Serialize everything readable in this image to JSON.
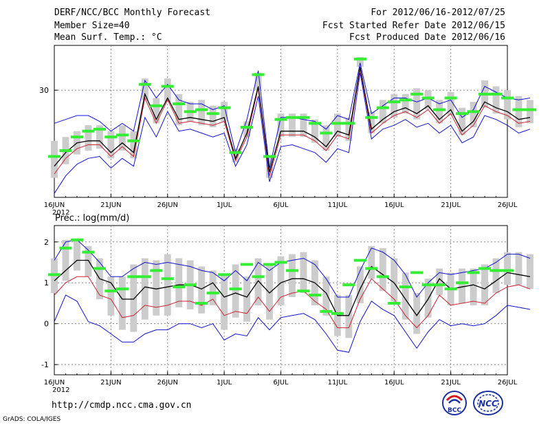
{
  "header": {
    "title": "DERF/NCC/BCC Monthly Forecast",
    "member_size": "Member Size=40",
    "variable_top": "Mean Surf. Temp.: °C",
    "period": "For 2012/06/16-2012/07/25",
    "fcst_started": "Fcst Started Refer Date 2012/06/15",
    "fcst_produced": "Fcst Produced Date 2012/06/16"
  },
  "footer": {
    "url": "http://cmdp.ncc.cma.gov.cn",
    "credit": "GrADS: COLA/IGES",
    "logo1_text": "BCC",
    "logo2_text": "NCC"
  },
  "colors": {
    "upper_line": "#1010d0",
    "lower_line": "#1010d0",
    "mean_line": "#000000",
    "median_line": "#cc2233",
    "observed": "#33ee33",
    "spread_bar": "#cccccc",
    "grid": "#888888"
  },
  "chart_data": [
    {
      "type": "line",
      "title": "Mean Surf. Temp.: °C",
      "xlabel": "",
      "ylabel": "",
      "x_days": 40,
      "x_ticks": [
        {
          "day": 0,
          "label": "16JUN"
        },
        {
          "day": 5,
          "label": "21JUN"
        },
        {
          "day": 10,
          "label": "26JUN"
        },
        {
          "day": 15,
          "label": "1JUL"
        },
        {
          "day": 20,
          "label": "6JUL"
        },
        {
          "day": 25,
          "label": "11JUL"
        },
        {
          "day": 30,
          "label": "16JUL"
        },
        {
          "day": 35,
          "label": "21JUL"
        },
        {
          "day": 40,
          "label": "26JUL"
        }
      ],
      "year_label": "2012",
      "y_ticks": [
        30
      ],
      "ylim": [
        24.5,
        32.3
      ],
      "series": [
        {
          "name": "upper",
          "values": [
            28.3,
            28.5,
            28.7,
            28.7,
            28.4,
            27.9,
            28.3,
            27.9,
            30.5,
            29.6,
            30.3,
            29.5,
            29.3,
            29.3,
            29.0,
            29.2,
            26.8,
            28.5,
            31.0,
            26.0,
            28.6,
            28.6,
            28.5,
            28.4,
            28.0,
            28.7,
            28.5,
            31.4,
            28.8,
            29.2,
            29.6,
            29.6,
            29.4,
            29.6,
            29.3,
            29.5,
            28.6,
            29.0,
            30.2,
            29.9,
            29.6,
            29.5,
            29.6
          ]
        },
        {
          "name": "mean",
          "values": [
            26.1,
            26.8,
            27.3,
            27.4,
            27.4,
            26.8,
            27.3,
            26.8,
            29.8,
            28.5,
            29.6,
            28.5,
            28.6,
            28.5,
            28.4,
            28.6,
            26.5,
            27.8,
            30.2,
            25.8,
            27.9,
            27.9,
            27.9,
            27.6,
            27.1,
            27.9,
            27.7,
            31.2,
            28.0,
            28.5,
            28.9,
            29.1,
            28.8,
            29.2,
            28.5,
            29.0,
            27.9,
            28.4,
            29.4,
            29.1,
            28.9,
            28.5,
            28.6
          ]
        },
        {
          "name": "median",
          "values": [
            25.7,
            26.5,
            27.0,
            27.2,
            27.2,
            26.6,
            27.1,
            26.6,
            29.6,
            28.3,
            29.5,
            28.3,
            28.4,
            28.3,
            28.2,
            28.4,
            26.4,
            27.6,
            30.1,
            25.6,
            27.7,
            27.7,
            27.7,
            27.4,
            26.9,
            27.7,
            27.5,
            31.1,
            27.8,
            28.3,
            28.7,
            28.9,
            28.6,
            29.0,
            28.3,
            28.8,
            27.7,
            28.2,
            29.2,
            28.9,
            28.7,
            28.3,
            28.4
          ]
        },
        {
          "name": "lower",
          "values": [
            24.7,
            25.6,
            26.2,
            26.5,
            26.6,
            26.0,
            26.5,
            26.1,
            28.6,
            27.6,
            28.9,
            27.9,
            28.0,
            27.8,
            27.6,
            27.8,
            26.1,
            27.2,
            29.7,
            25.3,
            27.1,
            27.2,
            27.0,
            26.8,
            26.3,
            27.0,
            26.8,
            30.9,
            27.5,
            28.0,
            28.2,
            28.5,
            28.1,
            28.3,
            27.8,
            28.2,
            27.3,
            27.6,
            28.7,
            28.5,
            28.2,
            27.8,
            28.0
          ]
        },
        {
          "name": "observed",
          "values": [
            26.6,
            26.9,
            27.6,
            27.9,
            28.0,
            27.6,
            27.7,
            27.4,
            30.3,
            29.2,
            30.2,
            29.3,
            28.9,
            29.0,
            28.8,
            29.1,
            26.8,
            28.1,
            30.8,
            26.6,
            28.5,
            28.6,
            28.6,
            28.3,
            27.8,
            28.3,
            28.3,
            31.6,
            28.6,
            29.1,
            29.4,
            29.5,
            29.8,
            29.6,
            29.0,
            29.6,
            28.8,
            28.9,
            29.8,
            29.8,
            29.6,
            29.0,
            29.0
          ]
        },
        {
          "name": "spread_high",
          "values": [
            27.4,
            27.6,
            27.9,
            28.2,
            28.2,
            27.9,
            28.2,
            27.9,
            30.6,
            29.6,
            30.6,
            29.8,
            29.4,
            29.5,
            29.2,
            29.4,
            27.0,
            28.4,
            30.9,
            26.6,
            28.8,
            28.8,
            28.8,
            28.5,
            28.2,
            28.8,
            28.6,
            31.7,
            28.9,
            29.5,
            29.8,
            29.8,
            30.1,
            30.0,
            29.5,
            29.9,
            29.1,
            29.4,
            30.5,
            30.2,
            30.0,
            29.7,
            29.5
          ]
        },
        {
          "name": "spread_low",
          "values": [
            25.5,
            26.2,
            26.7,
            26.9,
            27.0,
            26.5,
            26.9,
            26.5,
            29.5,
            28.3,
            29.4,
            28.2,
            28.4,
            28.2,
            28.1,
            28.4,
            26.3,
            27.6,
            30.0,
            25.5,
            27.6,
            27.6,
            27.6,
            27.3,
            26.9,
            27.6,
            27.4,
            31.2,
            27.8,
            28.3,
            28.6,
            28.8,
            28.5,
            29.0,
            28.3,
            28.7,
            27.7,
            28.1,
            29.1,
            28.8,
            28.5,
            28.1,
            28.3
          ]
        }
      ]
    },
    {
      "type": "line",
      "title": "Prec.: log(mm/d)",
      "xlabel": "",
      "ylabel": "",
      "x_days": 40,
      "x_ticks": [
        {
          "day": 0,
          "label": "16JUN"
        },
        {
          "day": 5,
          "label": "21JUN"
        },
        {
          "day": 10,
          "label": "26JUN"
        },
        {
          "day": 15,
          "label": "1JUL"
        },
        {
          "day": 20,
          "label": "6JUL"
        },
        {
          "day": 25,
          "label": "11JUL"
        },
        {
          "day": 30,
          "label": "16JUL"
        },
        {
          "day": 35,
          "label": "21JUL"
        },
        {
          "day": 40,
          "label": "26JUL"
        }
      ],
      "year_label": "2012",
      "y_ticks": [
        -1,
        0,
        1,
        2
      ],
      "ylim": [
        -1.25,
        2.4
      ],
      "series": [
        {
          "name": "upper",
          "values": [
            1.55,
            2.0,
            2.05,
            1.8,
            1.5,
            1.15,
            1.15,
            1.35,
            1.5,
            1.45,
            1.5,
            1.45,
            1.4,
            1.3,
            1.25,
            1.05,
            1.3,
            1.05,
            1.5,
            1.3,
            1.5,
            1.55,
            1.6,
            1.45,
            1.1,
            0.65,
            0.65,
            1.3,
            1.85,
            1.75,
            1.55,
            1.2,
            0.65,
            1.0,
            1.25,
            1.2,
            1.25,
            1.3,
            1.35,
            1.5,
            1.7,
            1.7,
            1.6
          ]
        },
        {
          "name": "mean",
          "values": [
            1.05,
            1.3,
            1.55,
            1.55,
            1.1,
            1.0,
            0.6,
            0.6,
            0.9,
            0.85,
            0.9,
            0.95,
            0.95,
            0.85,
            1.0,
            0.65,
            0.75,
            0.65,
            1.05,
            0.75,
            1.0,
            1.1,
            1.1,
            1.0,
            0.75,
            0.2,
            0.2,
            0.85,
            1.4,
            1.2,
            1.0,
            0.6,
            0.2,
            0.6,
            1.1,
            0.85,
            0.9,
            0.95,
            0.85,
            1.05,
            1.25,
            1.2,
            1.15
          ]
        },
        {
          "name": "median",
          "values": [
            0.7,
            1.0,
            1.15,
            1.15,
            0.7,
            0.6,
            0.15,
            0.2,
            0.45,
            0.4,
            0.45,
            0.55,
            0.55,
            0.45,
            0.6,
            0.2,
            0.3,
            0.25,
            0.65,
            0.3,
            0.65,
            0.75,
            0.8,
            0.55,
            0.35,
            -0.1,
            -0.1,
            0.6,
            1.1,
            0.85,
            0.6,
            0.2,
            -0.1,
            0.2,
            0.7,
            0.45,
            0.5,
            0.55,
            0.5,
            0.75,
            0.9,
            0.95,
            0.85
          ]
        },
        {
          "name": "lower",
          "values": [
            0.05,
            0.7,
            0.55,
            0.05,
            -0.05,
            -0.25,
            -0.45,
            -0.45,
            -0.25,
            -0.15,
            -0.15,
            0.0,
            0.0,
            -0.1,
            0.0,
            -0.4,
            -0.25,
            -0.3,
            0.15,
            -0.15,
            0.15,
            0.2,
            0.25,
            0.1,
            -0.25,
            -0.65,
            -0.7,
            0.05,
            0.55,
            0.35,
            0.2,
            -0.2,
            -0.6,
            -0.2,
            0.1,
            -0.05,
            0.0,
            -0.05,
            0.0,
            0.2,
            0.45,
            0.4,
            0.35
          ]
        },
        {
          "name": "observed",
          "values": [
            1.2,
            1.85,
            2.05,
            1.75,
            1.35,
            0.8,
            0.85,
            1.15,
            1.15,
            1.3,
            1.1,
            0.9,
            0.95,
            0.5,
            0.75,
            1.2,
            0.85,
            1.45,
            1.15,
            1.45,
            1.5,
            1.3,
            0.8,
            0.7,
            0.3,
            0.25,
            0.95,
            1.55,
            1.35,
            1.15,
            0.5,
            0.9,
            1.25,
            0.95,
            0.95,
            0.85,
            1.0,
            1.25,
            1.35,
            1.3,
            1.3
          ]
        },
        {
          "name": "spread_high",
          "values": [
            1.6,
            2.05,
            2.05,
            1.9,
            1.6,
            1.15,
            1.15,
            1.45,
            1.6,
            1.55,
            1.7,
            1.6,
            1.55,
            1.4,
            1.3,
            1.2,
            1.45,
            1.15,
            1.6,
            1.45,
            1.65,
            1.7,
            1.75,
            1.55,
            1.15,
            0.7,
            0.7,
            1.4,
            1.9,
            1.85,
            1.6,
            1.25,
            0.75,
            1.1,
            1.35,
            1.25,
            1.35,
            1.35,
            1.45,
            1.6,
            1.75,
            1.75,
            1.7
          ]
        },
        {
          "name": "spread_low",
          "values": [
            0.75,
            1.05,
            1.3,
            1.15,
            0.6,
            0.2,
            -0.15,
            -0.2,
            0.1,
            0.2,
            0.2,
            0.4,
            0.35,
            0.25,
            0.45,
            -0.15,
            0.15,
            0.05,
            0.45,
            0.1,
            0.45,
            0.65,
            0.75,
            0.45,
            0.2,
            -0.3,
            -0.35,
            0.5,
            1.1,
            0.8,
            0.55,
            0.1,
            -0.25,
            0.15,
            0.7,
            0.45,
            0.5,
            0.45,
            0.45,
            0.75,
            0.95,
            0.95,
            0.85
          ]
        }
      ]
    }
  ]
}
